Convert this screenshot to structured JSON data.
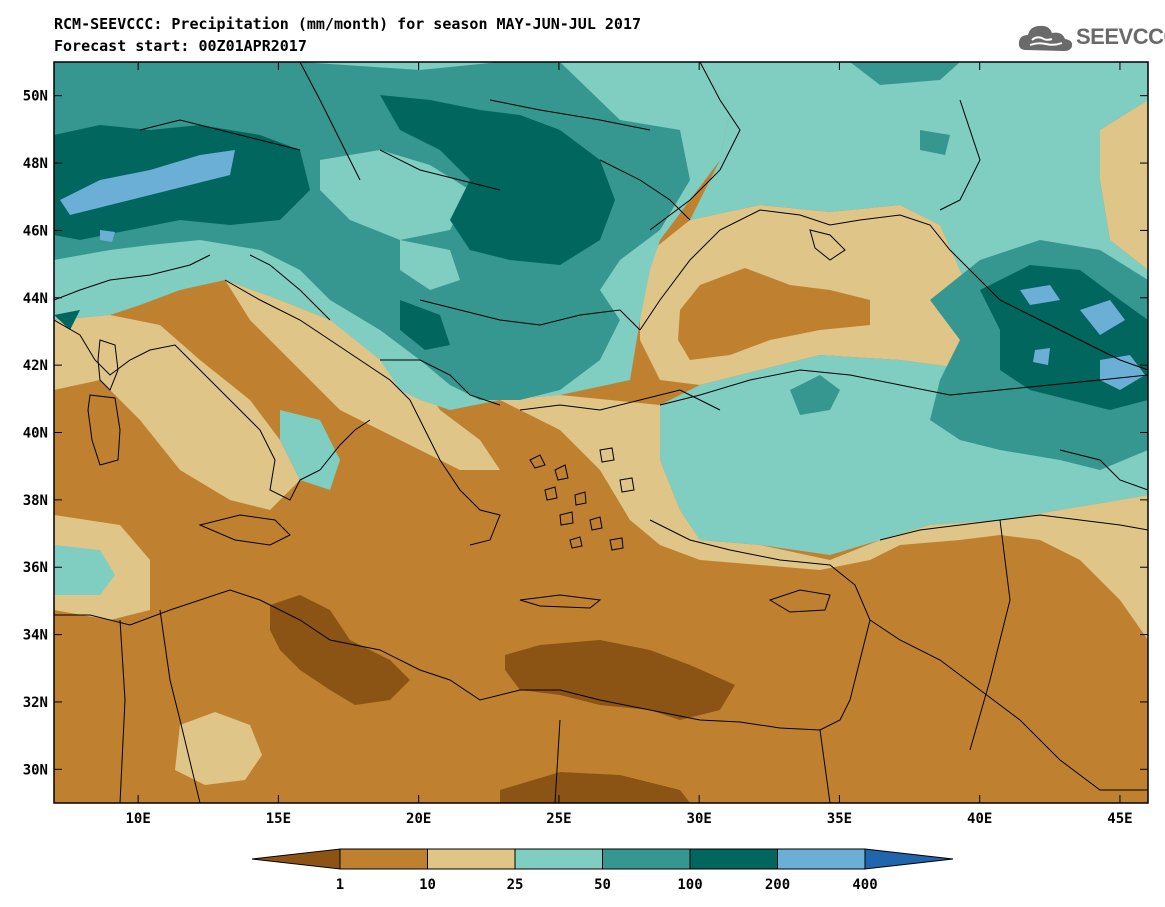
{
  "header": {
    "title": "RCM-SEEVCCC: Precipitation (mm/month) for season MAY-JUN-JUL 2017",
    "subtitle": "Forecast start: 00Z01APR2017"
  },
  "logo": {
    "text": "SEEVCCC",
    "icon": "cloud-icon"
  },
  "map": {
    "lon_range": [
      7,
      46
    ],
    "lat_range": [
      29,
      51
    ],
    "lat_labels": [
      "50N",
      "48N",
      "46N",
      "44N",
      "42N",
      "40N",
      "38N",
      "36N",
      "34N",
      "32N",
      "30N"
    ],
    "lon_labels": [
      "10E",
      "15E",
      "20E",
      "25E",
      "30E",
      "35E",
      "40E",
      "45E"
    ]
  },
  "colorbar": {
    "labels": [
      "1",
      "10",
      "25",
      "50",
      "100",
      "200",
      "400"
    ],
    "colors": [
      "#8b5414",
      "#bf8130",
      "#e0c588",
      "#80cdc1",
      "#35978f",
      "#01665e",
      "#6baed6",
      "#2166ac"
    ]
  }
}
